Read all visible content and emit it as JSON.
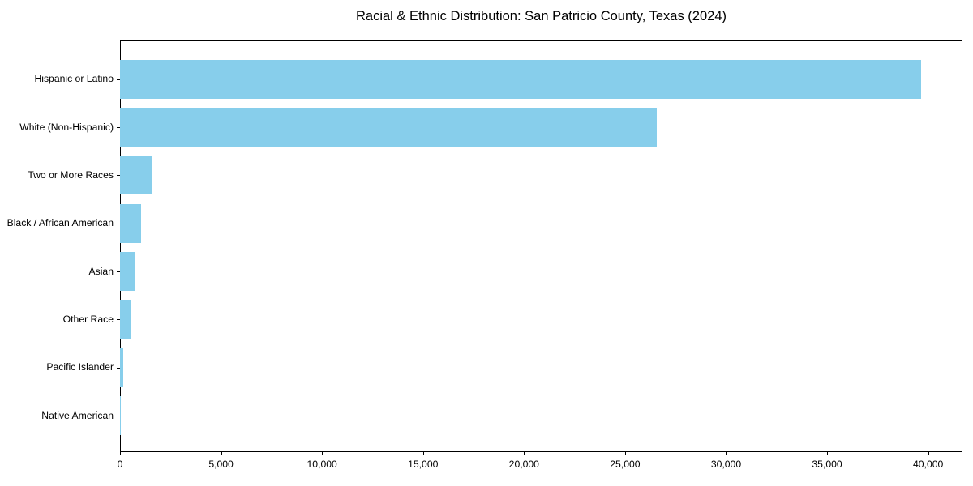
{
  "chart_data": {
    "type": "bar",
    "orientation": "horizontal",
    "title": "Racial & Ethnic Distribution: San Patricio County, Texas (2024)",
    "categories": [
      "Hispanic or Latino",
      "White (Non-Hispanic)",
      "Two or More Races",
      "Black / African American",
      "Asian",
      "Other Race",
      "Pacific Islander",
      "Native American"
    ],
    "values": [
      39640,
      26560,
      1550,
      1050,
      750,
      510,
      150,
      40
    ],
    "bar_color": "#87CEEB",
    "xlabel": "",
    "ylabel": "",
    "xlim": [
      0,
      41700
    ],
    "xticks": [
      0,
      5000,
      10000,
      15000,
      20000,
      25000,
      30000,
      35000,
      40000
    ],
    "xtick_labels": [
      "0",
      "5,000",
      "10,000",
      "15,000",
      "20,000",
      "25,000",
      "30,000",
      "35,000",
      "40,000"
    ],
    "grid": false,
    "legend": "none",
    "text_color": "#000000",
    "background_color": "#ffffff"
  }
}
